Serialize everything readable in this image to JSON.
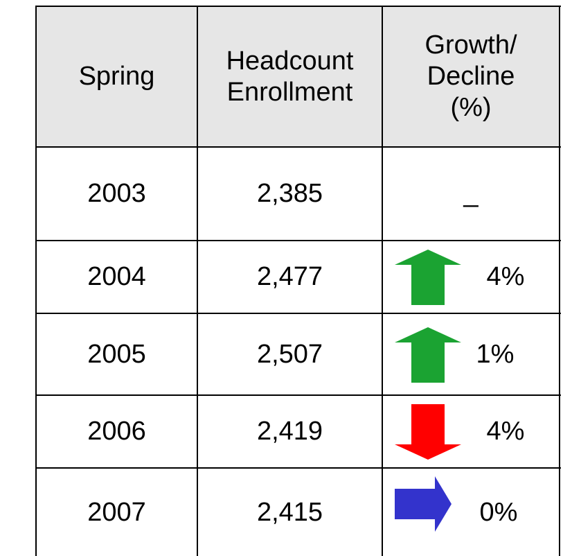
{
  "table": {
    "headers": [
      [
        "Spring"
      ],
      [
        "Headcount",
        "Enrollment"
      ],
      [
        "Growth/",
        "Decline",
        "(%)"
      ]
    ],
    "rows": [
      [
        "2003",
        "2,385",
        "_"
      ],
      [
        "2004",
        "2,477",
        "4%"
      ],
      [
        "2005",
        "2,507",
        "1%"
      ],
      [
        "2006",
        "2,419",
        "4%"
      ],
      [
        "2007",
        "2,415",
        "0%"
      ]
    ]
  }
}
